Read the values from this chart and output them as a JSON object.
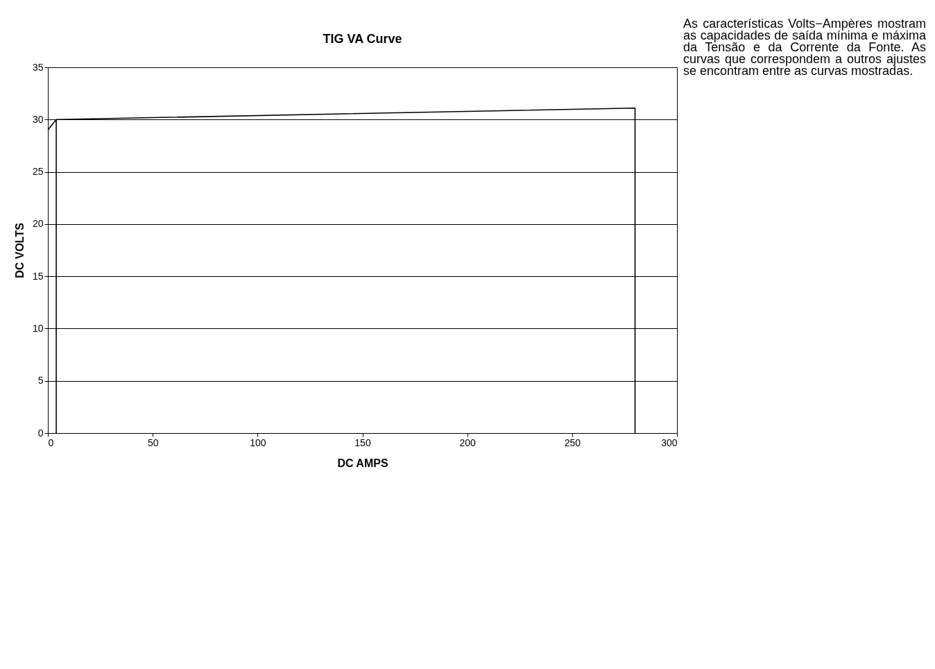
{
  "chart_data": {
    "type": "line",
    "title": "TIG VA Curve",
    "xlabel": "DC AMPS",
    "ylabel": "DC VOLTS",
    "series": [
      {
        "color": "#000000",
        "x": [
          0,
          4,
          4
        ],
        "values": [
          29,
          30,
          0
        ]
      },
      {
        "color": "#000000",
        "x": [
          4,
          280,
          280
        ],
        "values": [
          30,
          31.1,
          0
        ]
      }
    ],
    "xlim": [
      0,
      300
    ],
    "xticks": [
      0,
      50,
      100,
      150,
      200,
      250,
      300
    ],
    "ylim": [
      0,
      35
    ],
    "yticks": [
      0,
      5,
      10,
      15,
      20,
      25,
      30,
      35
    ],
    "grid": "y",
    "legend": false,
    "marker": "none",
    "line_style": "solid",
    "annotations": [
      "As características Volts−Ampères mostram as capacidades de saída mínima e máxima da Tensão e da Corrente da Fonte. As curvas que correspondem a outros ajustes se encontram entre as curvas mostradas."
    ]
  }
}
